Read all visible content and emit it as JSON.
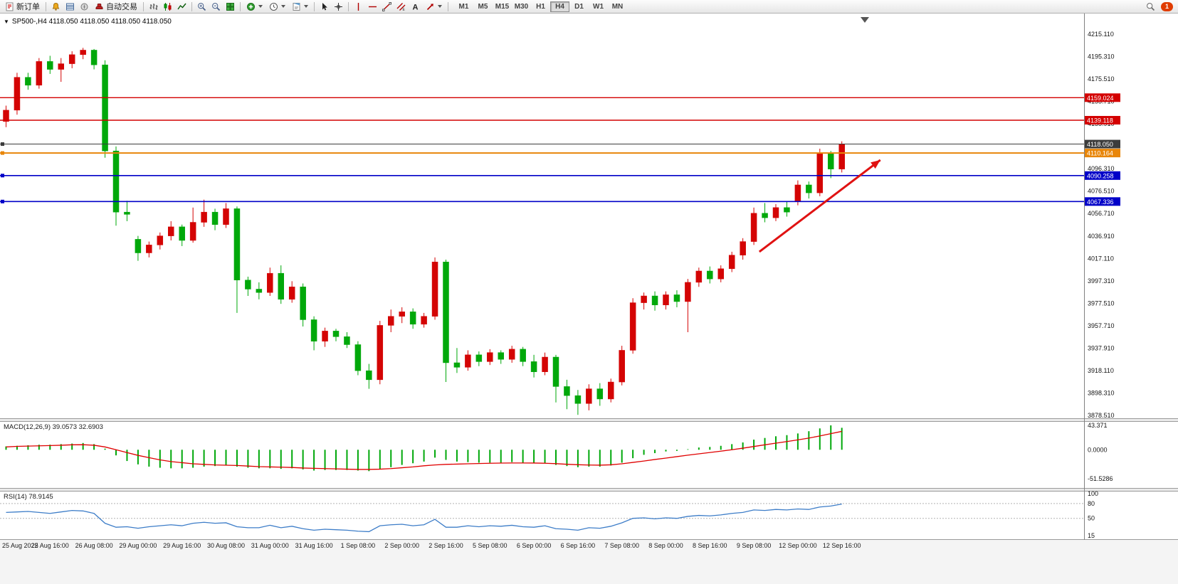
{
  "toolbar": {
    "new_order_label": "新订单",
    "autotrading_label": "自动交易",
    "timeframes": [
      "M1",
      "M5",
      "M15",
      "M30",
      "H1",
      "H4",
      "D1",
      "W1",
      "MN"
    ],
    "active_timeframe": "H4",
    "notification_count": "1"
  },
  "icons": {
    "one_click_toggle": "▼"
  },
  "chart": {
    "title": "SP500-,H4  4118.050 4118.050 4118.050 4118.050",
    "macd_label": "MACD(12,26,9) 39.0573 32.6903",
    "rsi_label": "RSI(14) 78.9145"
  },
  "chart_data": {
    "type": "candlestick",
    "symbol": "SP500-",
    "timeframe": "H4",
    "price_max": 4215.11,
    "price_min": 3878.51,
    "colors": {
      "bull": "#d40404",
      "bear": "#00a80a"
    },
    "price_axis_labels": [
      "4215.110",
      "4195.310",
      "4175.510",
      "4155.710",
      "4135.910",
      "4096.310",
      "4076.510",
      "4056.710",
      "4036.910",
      "4017.110",
      "3997.310",
      "3977.510",
      "3957.710",
      "3937.910",
      "3918.110",
      "3898.310",
      "3878.510"
    ],
    "time_labels": [
      "25 Aug 2022",
      "25 Aug 16:00",
      "26 Aug 08:00",
      "29 Aug 00:00",
      "29 Aug 16:00",
      "30 Aug 08:00",
      "31 Aug 00:00",
      "31 Aug 16:00",
      "1 Sep 08:00",
      "2 Sep 00:00",
      "2 Sep 16:00",
      "5 Sep 08:00",
      "6 Sep 00:00",
      "6 Sep 16:00",
      "7 Sep 08:00",
      "8 Sep 00:00",
      "8 Sep 16:00",
      "9 Sep 08:00",
      "12 Sep 00:00",
      "12 Sep 16:00"
    ],
    "bars_per_label": 4,
    "current_price": 4118.05,
    "hlines": [
      {
        "price": 4159.024,
        "label": "4159.024",
        "color": "#d40000",
        "width": 1.4,
        "marker": false
      },
      {
        "price": 4139.118,
        "label": "4139.118",
        "color": "#d40000",
        "width": 1.4,
        "marker": false
      },
      {
        "price": 4118.05,
        "label": "4118.050",
        "color": "#3c3c3c",
        "width": 1,
        "marker": true
      },
      {
        "price": 4110.164,
        "label": "4110.164",
        "color": "#e8860a",
        "width": 2,
        "marker": true
      },
      {
        "price": 4090.258,
        "label": "4090.258",
        "color": "#0000c8",
        "width": 1.6,
        "marker": true
      },
      {
        "price": 4067.336,
        "label": "4067.336",
        "color": "#0000c8",
        "width": 1.6,
        "marker": true
      }
    ],
    "trend_arrow": {
      "from_bar": 68.5,
      "from_price": 4023,
      "to_bar": 79.5,
      "to_price": 4104,
      "color": "#e01212"
    },
    "candles": [
      [
        4138,
        4152,
        4133,
        4148
      ],
      [
        4148,
        4181,
        4144,
        4177
      ],
      [
        4177,
        4181,
        4166,
        4170
      ],
      [
        4170,
        4194,
        4167,
        4191
      ],
      [
        4191,
        4196,
        4180,
        4184
      ],
      [
        4184,
        4194,
        4173,
        4189
      ],
      [
        4189,
        4200,
        4185,
        4197
      ],
      [
        4197,
        4203,
        4193,
        4201
      ],
      [
        4201,
        4202,
        4184,
        4188
      ],
      [
        4188,
        4192,
        4106,
        4112
      ],
      [
        4112,
        4116,
        4046,
        4058
      ],
      [
        4058,
        4068,
        4050,
        4056
      ],
      [
        4034,
        4037,
        4015,
        4022
      ],
      [
        4022,
        4032,
        4018,
        4029
      ],
      [
        4029,
        4040,
        4025,
        4037
      ],
      [
        4037,
        4050,
        4033,
        4045
      ],
      [
        4045,
        4047,
        4028,
        4033
      ],
      [
        4033,
        4062,
        4031,
        4049
      ],
      [
        4049,
        4069,
        4045,
        4058
      ],
      [
        4058,
        4061,
        4042,
        4047
      ],
      [
        4047,
        4066,
        4044,
        4061
      ],
      [
        4061,
        4063,
        3969,
        3998
      ],
      [
        3998,
        4001,
        3984,
        3990
      ],
      [
        3990,
        3996,
        3981,
        3987
      ],
      [
        3987,
        4009,
        3984,
        4004
      ],
      [
        4004,
        4011,
        3977,
        3981
      ],
      [
        3981,
        3997,
        3978,
        3992
      ],
      [
        3992,
        3995,
        3957,
        3963
      ],
      [
        3963,
        3966,
        3936,
        3944
      ],
      [
        3944,
        3956,
        3939,
        3953
      ],
      [
        3953,
        3955,
        3944,
        3948
      ],
      [
        3948,
        3952,
        3938,
        3941
      ],
      [
        3941,
        3944,
        3914,
        3918
      ],
      [
        3918,
        3924,
        3902,
        3910
      ],
      [
        3910,
        3962,
        3906,
        3958
      ],
      [
        3958,
        3972,
        3952,
        3966
      ],
      [
        3966,
        3974,
        3960,
        3970
      ],
      [
        3970,
        3973,
        3955,
        3959
      ],
      [
        3959,
        3969,
        3956,
        3966
      ],
      [
        3966,
        4018,
        3963,
        4014
      ],
      [
        4014,
        4016,
        3908,
        3925
      ],
      [
        3925,
        3938,
        3916,
        3921
      ],
      [
        3921,
        3936,
        3918,
        3932
      ],
      [
        3932,
        3935,
        3922,
        3926
      ],
      [
        3926,
        3937,
        3923,
        3934
      ],
      [
        3934,
        3936,
        3924,
        3928
      ],
      [
        3928,
        3940,
        3925,
        3937
      ],
      [
        3937,
        3939,
        3922,
        3926
      ],
      [
        3926,
        3932,
        3912,
        3917
      ],
      [
        3917,
        3934,
        3914,
        3930
      ],
      [
        3930,
        3932,
        3890,
        3904
      ],
      [
        3904,
        3910,
        3884,
        3896
      ],
      [
        3896,
        3901,
        3879,
        3889
      ],
      [
        3889,
        3906,
        3883,
        3902
      ],
      [
        3902,
        3907,
        3887,
        3893
      ],
      [
        3893,
        3911,
        3890,
        3908
      ],
      [
        3908,
        3940,
        3905,
        3936
      ],
      [
        3936,
        3982,
        3933,
        3978
      ],
      [
        3978,
        3987,
        3972,
        3984
      ],
      [
        3984,
        3988,
        3971,
        3976
      ],
      [
        3976,
        3988,
        3972,
        3985
      ],
      [
        3985,
        3989,
        3974,
        3979
      ],
      [
        3979,
        3999,
        3952,
        3996
      ],
      [
        3996,
        4009,
        3992,
        4006
      ],
      [
        4006,
        4010,
        3995,
        3999
      ],
      [
        3999,
        4011,
        3996,
        4008
      ],
      [
        4008,
        4023,
        4005,
        4020
      ],
      [
        4020,
        4035,
        4016,
        4032
      ],
      [
        4032,
        4062,
        4029,
        4057
      ],
      [
        4057,
        4066,
        4049,
        4053
      ],
      [
        4053,
        4065,
        4050,
        4062
      ],
      [
        4062,
        4067,
        4054,
        4058
      ],
      [
        4068,
        4086,
        4064,
        4082
      ],
      [
        4082,
        4085,
        4070,
        4075
      ],
      [
        4075,
        4114,
        4072,
        4110
      ],
      [
        4110,
        4112,
        4088,
        4096
      ],
      [
        4096,
        4120.5,
        4093,
        4118.05
      ]
    ],
    "indicators": {
      "macd": {
        "name": "MACD",
        "params": "(12,26,9)",
        "values": [
          39.0573,
          32.6903
        ],
        "max": 43.371,
        "min": -51.5286,
        "scale_labels": [
          "43.371",
          "0.0000",
          "-51.5286"
        ],
        "scale_values": [
          43.371,
          0,
          -51.5286
        ],
        "hist_color": "#00a80a",
        "signal_color": "#e00000",
        "histogram": [
          6,
          7,
          8,
          9,
          9,
          10,
          11,
          12,
          10,
          2,
          -10,
          -20,
          -26,
          -30,
          -32,
          -33,
          -33,
          -32,
          -30,
          -29,
          -28,
          -30,
          -32,
          -33,
          -33,
          -34,
          -33,
          -35,
          -37,
          -36,
          -36,
          -36,
          -37,
          -38,
          -35,
          -31,
          -27,
          -24,
          -21,
          -14,
          -18,
          -21,
          -22,
          -23,
          -23,
          -23,
          -22,
          -23,
          -24,
          -24,
          -27,
          -29,
          -31,
          -30,
          -30,
          -28,
          -23,
          -15,
          -9,
          -6,
          -3,
          -2,
          1,
          4,
          5,
          7,
          10,
          13,
          18,
          21,
          24,
          26,
          29,
          33,
          38,
          43.37,
          39.06
        ],
        "signal": [
          5,
          6,
          6.5,
          7,
          7.5,
          8,
          8.8,
          9,
          8,
          5,
          0,
          -5,
          -10,
          -14,
          -18,
          -21,
          -23,
          -25,
          -26,
          -27,
          -27.5,
          -28,
          -29,
          -30,
          -30.5,
          -31,
          -31.5,
          -32.5,
          -33,
          -33.5,
          -34,
          -34.5,
          -35,
          -35,
          -34.5,
          -33.5,
          -32,
          -30.5,
          -28.5,
          -27,
          -26,
          -25.5,
          -25,
          -24.5,
          -24,
          -23.7,
          -23.5,
          -23.5,
          -23.6,
          -24,
          -24.7,
          -25.8,
          -26.6,
          -27.2,
          -27.4,
          -26.8,
          -25,
          -22.5,
          -20,
          -17.3,
          -14.8,
          -12.2,
          -9.6,
          -7.2,
          -4.9,
          -2.5,
          0,
          2.8,
          5.8,
          8.8,
          11.7,
          14.6,
          17.6,
          20.8,
          24.5,
          28.6,
          32.7
        ]
      },
      "rsi": {
        "name": "RSI",
        "params": "(14)",
        "value": 78.9145,
        "max": 100,
        "min": 15,
        "levels": [
          80,
          50
        ],
        "scale_labels": [
          "100",
          "80",
          "50",
          "15"
        ],
        "scale_values": [
          100,
          80,
          50,
          15
        ],
        "color": "#3d7dc8",
        "values": [
          62,
          63,
          64,
          62,
          60,
          63,
          66,
          65,
          60,
          40,
          32,
          33,
          30,
          33,
          35,
          37,
          35,
          40,
          42,
          40,
          41,
          33,
          31,
          31,
          36,
          31,
          34,
          29,
          26,
          28,
          27,
          26,
          24,
          23,
          35,
          37,
          38,
          35,
          37,
          48,
          32,
          32,
          35,
          33,
          35,
          34,
          36,
          33,
          32,
          35,
          29,
          28,
          26,
          31,
          30,
          34,
          41,
          50,
          51,
          49,
          51,
          50,
          54,
          56,
          55,
          57,
          60,
          62,
          67,
          66,
          68,
          67,
          69,
          68,
          73,
          75,
          78.9
        ]
      }
    }
  }
}
